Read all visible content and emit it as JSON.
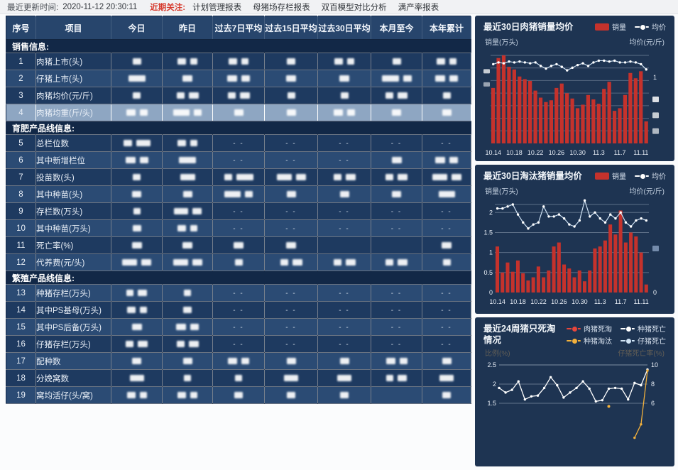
{
  "topbar": {
    "updated_label": "最近更新时间:",
    "updated_time": "2020-11-12 20:30:11",
    "focus_label": "近期关注:",
    "links": [
      "计划管理报表",
      "母猪场存栏报表",
      "双百模型对比分析",
      "满产率报表"
    ]
  },
  "table": {
    "headers": [
      "序号",
      "项目",
      "今日",
      "昨日",
      "过去7日平均",
      "过去15日平均",
      "过去30日平均",
      "本月至今",
      "本年累计"
    ],
    "redacted_note": "数值已打码",
    "rows": [
      {
        "type": "section",
        "label": "销售信息:"
      },
      {
        "type": "data",
        "num": "1",
        "label": "肉猪上市(头)",
        "shade": "dark",
        "selected": false,
        "cells": [
          "b",
          "bb",
          "bb",
          "b",
          "bb",
          "b",
          "bb"
        ]
      },
      {
        "type": "data",
        "num": "2",
        "label": "仔猪上市(头)",
        "shade": "light",
        "selected": false,
        "cells": [
          "B",
          "b",
          "bb",
          "b",
          "b",
          "Bb",
          "bb"
        ]
      },
      {
        "type": "data",
        "num": "3",
        "label": "肉猪均价(元/斤)",
        "shade": "dark",
        "selected": false,
        "cells": [
          "b",
          "bb",
          "bb",
          "b",
          "b",
          "bb",
          "b"
        ]
      },
      {
        "type": "data",
        "num": "4",
        "label": "肉猪均重(斤/头)",
        "shade": "highlight",
        "selected": true,
        "cells": [
          "bb",
          "Bb",
          "b",
          "b",
          "bb",
          "b",
          "b"
        ]
      },
      {
        "type": "section",
        "label": "育肥产品线信息:"
      },
      {
        "type": "data",
        "num": "5",
        "label": "总栏位数",
        "shade": "dark",
        "selected": false,
        "cells": [
          "bB",
          "bb",
          "--",
          "--",
          "--",
          "--",
          "--"
        ]
      },
      {
        "type": "data",
        "num": "6",
        "label": "其中新增栏位",
        "shade": "light",
        "selected": false,
        "cells": [
          "bb",
          "B",
          "--",
          "--",
          "--",
          "b",
          "bb"
        ]
      },
      {
        "type": "data",
        "num": "7",
        "label": "投苗数(头)",
        "shade": "dark",
        "selected": false,
        "cells": [
          "b",
          "B",
          "bB",
          "Bb",
          "bb",
          "bb",
          "Bb"
        ]
      },
      {
        "type": "data",
        "num": "8",
        "label": "其中种苗(头)",
        "shade": "light",
        "selected": false,
        "cells": [
          "b",
          "b",
          "Bb",
          "b",
          "b",
          "b",
          "B"
        ]
      },
      {
        "type": "data",
        "num": "9",
        "label": "存栏数(万头)",
        "shade": "dark",
        "selected": false,
        "cells": [
          "b",
          "Bb",
          "--",
          "--",
          "--",
          "--",
          "--"
        ]
      },
      {
        "type": "data",
        "num": "10",
        "label": "其中种苗(万头)",
        "shade": "light",
        "selected": false,
        "cells": [
          "b",
          "bb",
          "--",
          "--",
          "--",
          "--",
          "--"
        ]
      },
      {
        "type": "data",
        "num": "11",
        "label": "死亡率(%)",
        "shade": "dark",
        "selected": false,
        "cells": [
          "b",
          "b",
          "b",
          "b",
          "",
          "",
          "b"
        ]
      },
      {
        "type": "data",
        "num": "12",
        "label": "代养费(元/头)",
        "shade": "light",
        "selected": false,
        "cells": [
          "Bb",
          "Bb",
          "b",
          "bb",
          "bb",
          "bb",
          "b"
        ]
      },
      {
        "type": "section",
        "label": "繁殖产品线信息:"
      },
      {
        "type": "data",
        "num": "13",
        "label": "种猪存栏(万头)",
        "shade": "light",
        "selected": false,
        "cells": [
          "bb",
          "b",
          "--",
          "--",
          "--",
          "--",
          "--"
        ]
      },
      {
        "type": "data",
        "num": "14",
        "label": "其中PS基母(万头)",
        "shade": "dark",
        "selected": false,
        "cells": [
          "bb",
          "b",
          "--",
          "--",
          "--",
          "--",
          "--"
        ]
      },
      {
        "type": "data",
        "num": "15",
        "label": "其中PS后备(万头)",
        "shade": "light",
        "selected": false,
        "cells": [
          "b",
          "bb",
          "--",
          "--",
          "--",
          "--",
          "--"
        ]
      },
      {
        "type": "data",
        "num": "16",
        "label": "仔猪存栏(万头)",
        "shade": "dark",
        "selected": false,
        "cells": [
          "bb",
          "bb",
          "--",
          "--",
          "--",
          "--",
          "--"
        ]
      },
      {
        "type": "data",
        "num": "17",
        "label": "配种数",
        "shade": "light",
        "selected": false,
        "cells": [
          "b",
          "b",
          "bb",
          "b",
          "b",
          "bb",
          "b"
        ]
      },
      {
        "type": "data",
        "num": "18",
        "label": "分娩窝数",
        "shade": "dark",
        "selected": false,
        "cells": [
          "B",
          "b",
          "b",
          "B",
          "B",
          "bb",
          "B"
        ]
      },
      {
        "type": "data",
        "num": "19",
        "label": "窝均活仔(头/窝)",
        "shade": "light",
        "selected": false,
        "cells": [
          "bb",
          "bb",
          "b",
          "b",
          "b",
          "",
          "b"
        ]
      }
    ]
  },
  "chart_data": [
    {
      "type": "bar+line",
      "title": "最近30日肉猪销量均价",
      "legend": [
        {
          "label": "销量",
          "glyph": "bar",
          "color": "#c5322c"
        },
        {
          "label": "均价",
          "glyph": "line",
          "color": "#ffffff"
        }
      ],
      "ylabel_left": "销量(万头)",
      "ylabel_right": "均价(元/斤)",
      "x_tick_labels": [
        "10.14",
        "10.18",
        "10.22",
        "10.26",
        "10.30",
        "11.3",
        "11.7",
        "11.11"
      ],
      "x_tick_step": 4,
      "left_axis_redacted": true,
      "right_axis_visible_tick": "1",
      "right_axis_redacted_count": 3,
      "bars_relative": [
        0.63,
        0.97,
        1.0,
        0.87,
        0.84,
        0.76,
        0.73,
        0.71,
        0.6,
        0.52,
        0.47,
        0.49,
        0.63,
        0.68,
        0.57,
        0.51,
        0.4,
        0.44,
        0.55,
        0.5,
        0.45,
        0.62,
        0.7,
        0.37,
        0.4,
        0.55,
        0.8,
        0.74,
        0.82,
        0.25
      ],
      "line_relative": [
        0.9,
        0.92,
        0.91,
        0.93,
        0.92,
        0.93,
        0.92,
        0.91,
        0.92,
        0.88,
        0.85,
        0.88,
        0.9,
        0.87,
        0.83,
        0.86,
        0.89,
        0.91,
        0.88,
        0.92,
        0.94,
        0.94,
        0.93,
        0.94,
        0.92,
        0.92,
        0.93,
        0.92,
        0.9,
        0.84
      ]
    },
    {
      "type": "bar+line",
      "title": "最近30日淘汰猪销量均价",
      "legend": [
        {
          "label": "销量",
          "glyph": "bar",
          "color": "#c5322c"
        },
        {
          "label": "均价",
          "glyph": "line",
          "color": "#ffffff"
        }
      ],
      "ylabel_left": "销量(万头)",
      "ylabel_right": "均价(元/斤)",
      "x_tick_labels": [
        "10.14",
        "10.18",
        "10.22",
        "10.26",
        "10.30",
        "11.3",
        "11.7",
        "11.11"
      ],
      "x_tick_step": 4,
      "ylim_left": [
        0,
        2.2
      ],
      "yticks_left": [
        "2",
        "1.5",
        "1",
        "0.5",
        "0"
      ],
      "yticks_left_values": [
        2,
        1.5,
        1,
        0.5,
        0
      ],
      "right_axis_visible_tick": "0",
      "right_axis_redacted_count": 1,
      "bars": [
        1.15,
        0.5,
        0.75,
        0.52,
        0.8,
        0.48,
        0.3,
        0.38,
        0.65,
        0.38,
        0.55,
        1.15,
        1.25,
        0.7,
        0.6,
        0.38,
        0.55,
        0.28,
        0.55,
        1.1,
        1.15,
        1.3,
        1.7,
        1.45,
        2.05,
        1.25,
        1.5,
        1.4,
        1.0,
        0.2
      ],
      "line": [
        2.1,
        2.1,
        2.15,
        2.2,
        1.95,
        1.75,
        1.6,
        1.7,
        1.75,
        2.15,
        1.9,
        1.9,
        1.95,
        1.85,
        1.7,
        1.65,
        1.8,
        2.3,
        1.9,
        2.0,
        1.85,
        1.75,
        1.95,
        1.85,
        2.0,
        1.75,
        1.65,
        1.8,
        1.85,
        1.8
      ]
    },
    {
      "type": "multi-line",
      "title": "最近24周猪只死淘情况",
      "legend": [
        {
          "label": "肉猪死淘",
          "glyph": "line",
          "color": "#e8463c"
        },
        {
          "label": "种猪死亡",
          "glyph": "line",
          "color": "#ffffff"
        },
        {
          "label": "种猪淘汰",
          "glyph": "line",
          "color": "#f3b13c"
        },
        {
          "label": "仔猪死亡",
          "glyph": "line",
          "color": "#cfe3f5"
        }
      ],
      "ylabel_left": "比例(%)",
      "ylabel_right": "仔猪死亡率(%)",
      "yticks_left": [
        "2.5",
        "2",
        "1.5"
      ],
      "yticks_left_values": [
        2.5,
        2,
        1.5
      ],
      "yticks_right": [
        "10",
        "8",
        "6"
      ],
      "weeks": 24,
      "series": [
        {
          "name": "种猪死亡",
          "color": "#ffffff",
          "values": [
            1.9,
            1.78,
            1.85,
            2.07,
            1.6,
            1.68,
            1.7,
            1.9,
            2.18,
            1.97,
            1.65,
            1.78,
            1.9,
            2.07,
            1.88,
            1.55,
            1.58,
            1.88,
            1.9,
            1.88,
            1.6,
            2.03,
            1.97,
            2.38
          ]
        },
        {
          "name": "种猪淘汰",
          "color": "#f3b13c",
          "values": [
            null,
            null,
            null,
            null,
            null,
            null,
            null,
            null,
            null,
            null,
            null,
            null,
            null,
            null,
            null,
            null,
            null,
            null,
            null,
            null,
            null,
            0.6,
            0.95,
            2.35
          ]
        }
      ],
      "point_marker": {
        "series": "种猪淘汰",
        "index": 17,
        "value": 1.42,
        "color": "#f3b13c"
      }
    }
  ],
  "colors": {
    "bar_red": "#c5322c",
    "card_bg": "#1e3452",
    "row_dark": "#1e3a60",
    "row_light": "#2b4b74",
    "row_highlight": "#8ea6c2",
    "accent_red_text": "#d6392c",
    "line_white": "#e9f3fc",
    "yellow": "#f3b13c"
  }
}
